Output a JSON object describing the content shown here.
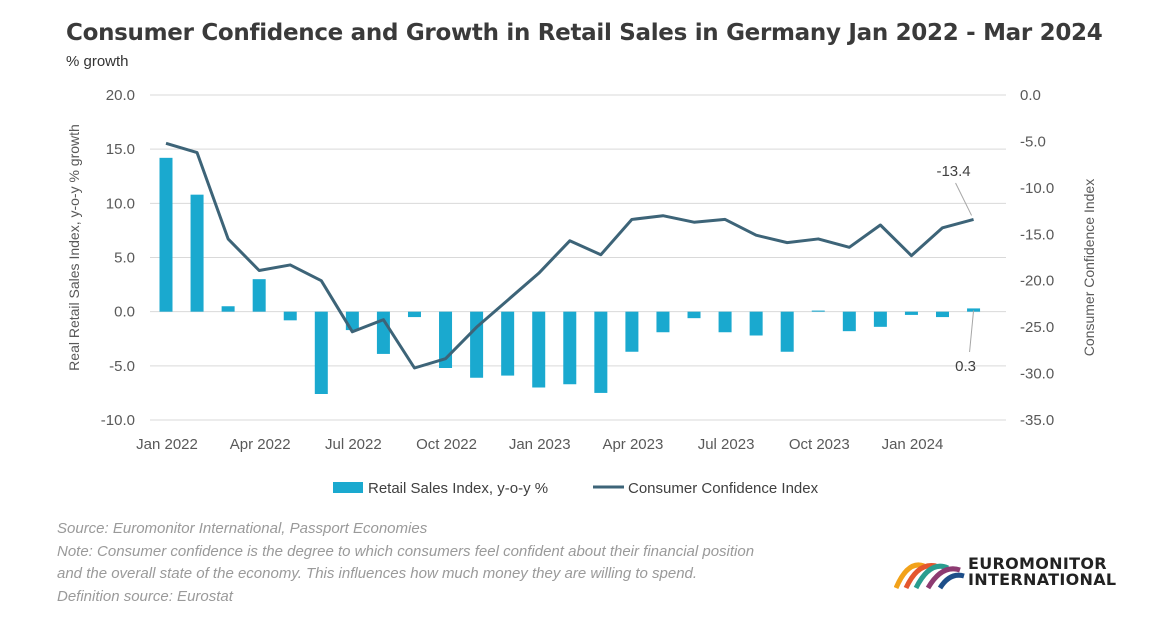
{
  "title": "Consumer Confidence and Growth in Retail Sales in Germany Jan 2022 - Mar 2024",
  "unit_label": "% growth",
  "chart_data": {
    "type": "bar+line",
    "title": "Consumer Confidence and Growth in Retail Sales in Germany Jan 2022 - Mar 2024",
    "ylabel_left": "Real Retail Sales Index, y-o-y % growth",
    "ylabel_right": "Consumer Confidence Index",
    "ylim_left": [
      -10,
      20
    ],
    "ylim_right": [
      -35,
      0
    ],
    "left_ticks": [
      "20.0",
      "15.0",
      "10.0",
      "5.0",
      "0.0",
      "-5.0",
      "-10.0"
    ],
    "right_ticks": [
      "0.0",
      "-5.0",
      "-10.0",
      "-15.0",
      "-20.0",
      "-25.0",
      "-30.0",
      "-35.0"
    ],
    "x_tick_labels": [
      {
        "index": 0,
        "label": "Jan 2022"
      },
      {
        "index": 3,
        "label": "Apr 2022"
      },
      {
        "index": 6,
        "label": "Jul 2022"
      },
      {
        "index": 9,
        "label": "Oct 2022"
      },
      {
        "index": 12,
        "label": "Jan 2023"
      },
      {
        "index": 15,
        "label": "Apr 2023"
      },
      {
        "index": 18,
        "label": "Jul 2023"
      },
      {
        "index": 21,
        "label": "Oct 2023"
      },
      {
        "index": 24,
        "label": "Jan 2024"
      }
    ],
    "categories": [
      "Jan 2022",
      "Feb 2022",
      "Mar 2022",
      "Apr 2022",
      "May 2022",
      "Jun 2022",
      "Jul 2022",
      "Aug 2022",
      "Sep 2022",
      "Oct 2022",
      "Nov 2022",
      "Dec 2022",
      "Jan 2023",
      "Feb 2023",
      "Mar 2023",
      "Apr 2023",
      "May 2023",
      "Jun 2023",
      "Jul 2023",
      "Aug 2023",
      "Sep 2023",
      "Oct 2023",
      "Nov 2023",
      "Dec 2023",
      "Jan 2024",
      "Feb 2024",
      "Mar 2024"
    ],
    "series": [
      {
        "name": "Retail Sales Index, y-o-y %",
        "type": "bar",
        "axis": "left",
        "color": "#1aa9cf",
        "values": [
          14.2,
          10.8,
          0.5,
          3.0,
          -0.8,
          -7.6,
          -1.7,
          -3.9,
          -0.5,
          -5.2,
          -6.1,
          -5.9,
          -7.0,
          -6.7,
          -7.5,
          -3.7,
          -1.9,
          -0.6,
          -1.9,
          -2.2,
          -3.7,
          0.1,
          -1.8,
          -1.4,
          -0.3,
          -0.5,
          0.3
        ]
      },
      {
        "name": "Consumer Confidence Index",
        "type": "line",
        "axis": "right",
        "color": "#3d6478",
        "values": [
          -5.2,
          -6.2,
          -15.5,
          -18.9,
          -18.3,
          -20.0,
          -25.5,
          -24.2,
          -29.4,
          -28.4,
          -25.0,
          -22.1,
          -19.2,
          -15.7,
          -17.2,
          -13.4,
          -13.0,
          -13.7,
          -13.4,
          -15.1,
          -15.9,
          -15.5,
          -16.4,
          -14.0,
          -17.3,
          -14.3,
          -13.4
        ]
      }
    ],
    "annotations": [
      {
        "label": "-13.4",
        "series": "Consumer Confidence Index",
        "index": 26
      },
      {
        "label": "0.3",
        "series": "Retail Sales Index, y-o-y %",
        "index": 26
      }
    ],
    "legend_position": "bottom",
    "grid": true
  },
  "footnotes": {
    "source": "Source: Euromonitor International, Passport Economies",
    "note_line1": "Note: Consumer confidence is the degree to which consumers feel confident about their financial position",
    "note_line2": "and the overall state of the economy. This influences how much money they are willing to spend.",
    "definition": "Definition source: Eurostat"
  },
  "logo": {
    "line1": "EUROMONITOR",
    "line2": "INTERNATIONAL",
    "icon": "rainbow-arches-logo-icon"
  }
}
